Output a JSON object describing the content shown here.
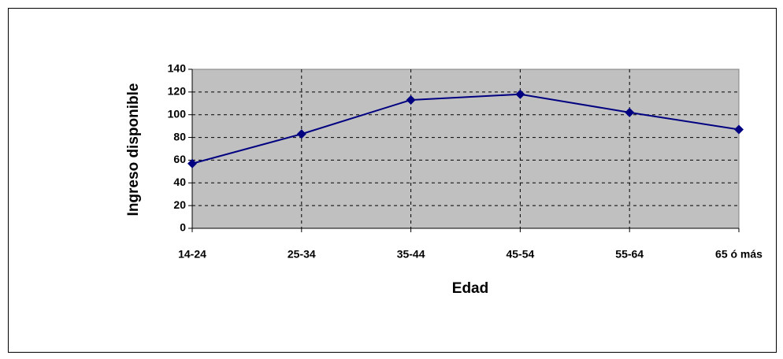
{
  "chart_data": {
    "type": "line",
    "xlabel": "Edad",
    "ylabel": "Ingreso disponible",
    "categories": [
      "14-24",
      "25-34",
      "35-44",
      "45-54",
      "55-64",
      "65 ó más"
    ],
    "values": [
      57,
      83,
      113,
      118,
      102,
      87
    ],
    "color": "#000080",
    "ylim": [
      0,
      140
    ],
    "yticks": [
      0,
      20,
      40,
      60,
      80,
      100,
      120,
      140
    ],
    "grid": true
  }
}
